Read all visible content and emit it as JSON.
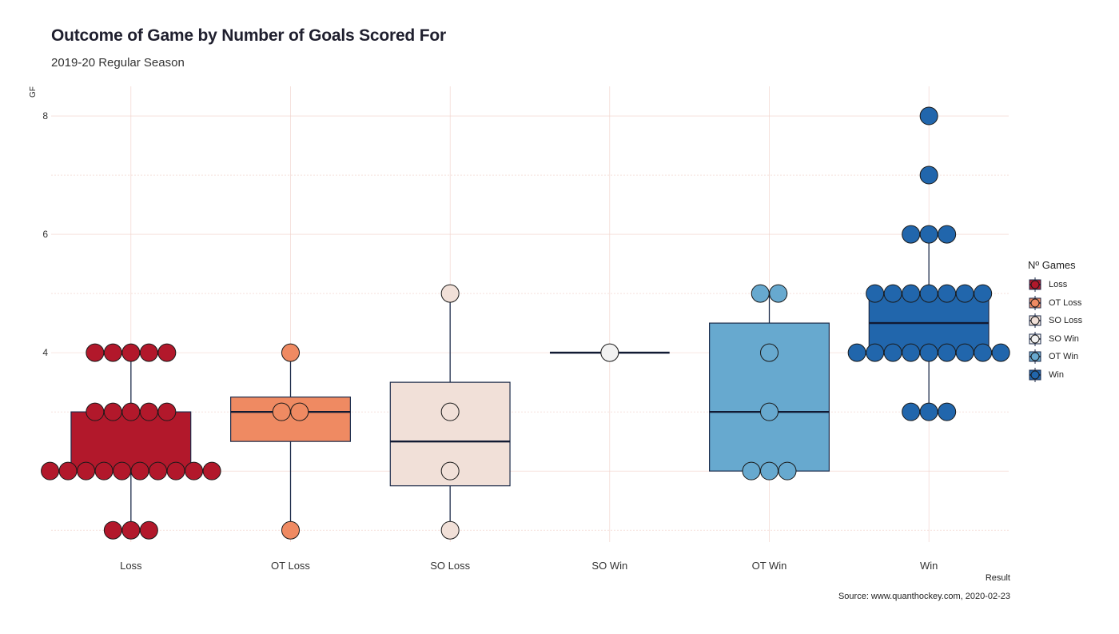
{
  "chart_data": {
    "type": "box",
    "title": "Outcome of Game by Number of Goals Scored For",
    "subtitle": "2019-20 Regular Season",
    "xlabel": "Result",
    "ylabel": "GF",
    "caption": "Source: www.quanthockey.com, 2020-02-23",
    "legend_title": "Nº Games",
    "ylim": [
      0.8,
      8.5
    ],
    "y_ticks": [
      2,
      4,
      6,
      8
    ],
    "grid": true,
    "legend_position": "right",
    "categories": [
      "Loss",
      "OT Loss",
      "SO Loss",
      "SO Win",
      "OT Win",
      "Win"
    ],
    "colors": {
      "Loss": "#b2182b",
      "OT Loss": "#ef8a62",
      "SO Loss": "#f1e0d8",
      "SO Win": "#f2f2f2",
      "OT Win": "#67a9cf",
      "Win": "#2166ac"
    },
    "boxes": [
      {
        "category": "Loss",
        "q1": 2,
        "median": 2,
        "q3": 3,
        "whisker_low": 1,
        "whisker_high": 4
      },
      {
        "category": "OT Loss",
        "q1": 2.5,
        "median": 3,
        "q3": 3.25,
        "whisker_low": 1,
        "whisker_high": 4
      },
      {
        "category": "SO Loss",
        "q1": 1.75,
        "median": 2.5,
        "q3": 3.5,
        "whisker_low": 1,
        "whisker_high": 5
      },
      {
        "category": "SO Win",
        "q1": 4,
        "median": 4,
        "q3": 4,
        "whisker_low": 4,
        "whisker_high": 4
      },
      {
        "category": "OT Win",
        "q1": 2,
        "median": 3,
        "q3": 4.5,
        "whisker_low": 2,
        "whisker_high": 5
      },
      {
        "category": "Win",
        "q1": 4,
        "median": 4.5,
        "q3": 5,
        "whisker_low": 3,
        "whisker_high": 6
      }
    ],
    "points": [
      {
        "category": "Loss",
        "y": 1,
        "count": 3
      },
      {
        "category": "Loss",
        "y": 2,
        "count": 10
      },
      {
        "category": "Loss",
        "y": 3,
        "count": 5
      },
      {
        "category": "Loss",
        "y": 4,
        "count": 5
      },
      {
        "category": "OT Loss",
        "y": 1,
        "count": 1
      },
      {
        "category": "OT Loss",
        "y": 3,
        "count": 2
      },
      {
        "category": "OT Loss",
        "y": 4,
        "count": 1
      },
      {
        "category": "SO Loss",
        "y": 1,
        "count": 1
      },
      {
        "category": "SO Loss",
        "y": 2,
        "count": 1
      },
      {
        "category": "SO Loss",
        "y": 3,
        "count": 1
      },
      {
        "category": "SO Loss",
        "y": 5,
        "count": 1
      },
      {
        "category": "SO Win",
        "y": 4,
        "count": 1
      },
      {
        "category": "OT Win",
        "y": 2,
        "count": 3
      },
      {
        "category": "OT Win",
        "y": 3,
        "count": 1
      },
      {
        "category": "OT Win",
        "y": 4,
        "count": 1
      },
      {
        "category": "OT Win",
        "y": 5,
        "count": 2
      },
      {
        "category": "Win",
        "y": 3,
        "count": 3
      },
      {
        "category": "Win",
        "y": 4,
        "count": 9
      },
      {
        "category": "Win",
        "y": 5,
        "count": 7
      },
      {
        "category": "Win",
        "y": 6,
        "count": 3
      },
      {
        "category": "Win",
        "y": 7,
        "count": 1
      },
      {
        "category": "Win",
        "y": 8,
        "count": 1
      }
    ]
  }
}
